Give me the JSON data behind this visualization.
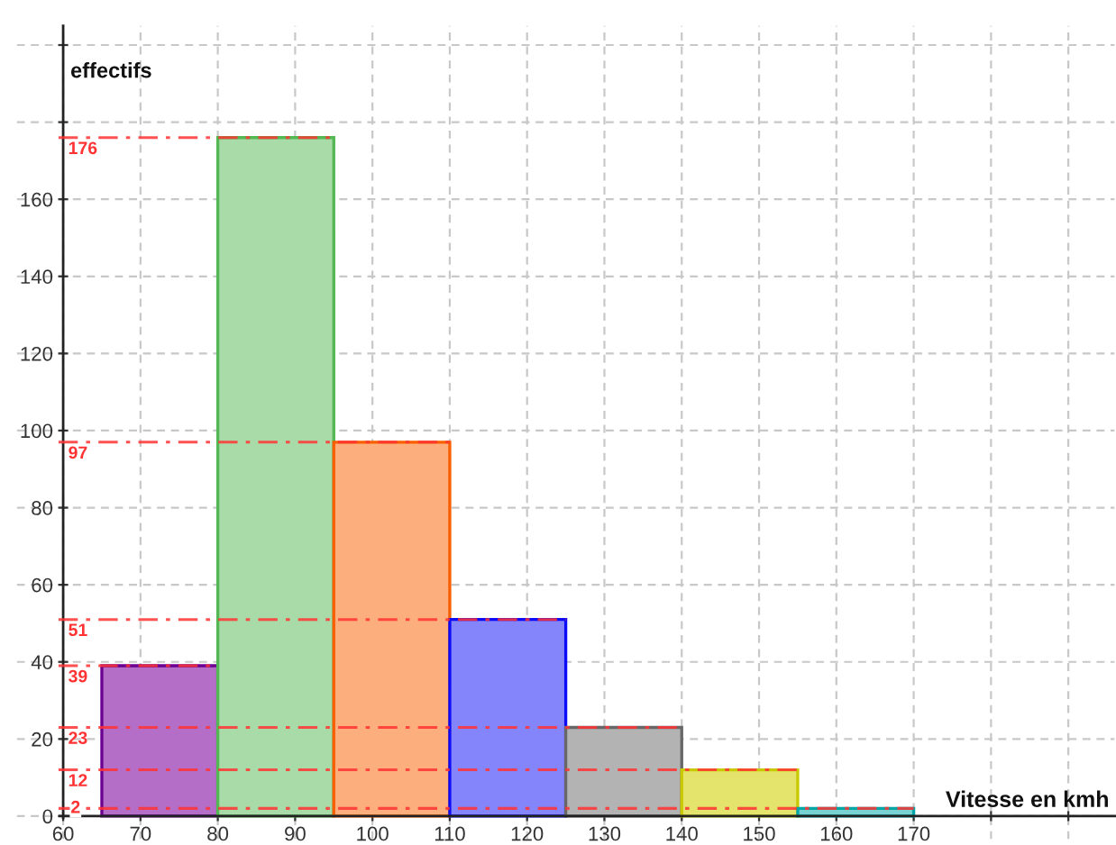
{
  "chart_data": {
    "type": "histogram",
    "xlabel": "Vitesse en kmh",
    "ylabel": "effectifs",
    "bins": [
      65,
      80,
      95,
      110,
      125,
      140,
      155,
      170
    ],
    "values": [
      39,
      176,
      97,
      51,
      23,
      12,
      2
    ],
    "colors": [
      "#b56ec8",
      "#a9dba9",
      "#fcaf7c",
      "#8585fb",
      "#b3b3b3",
      "#e4e46c",
      "#79d2d2"
    ],
    "xlim": [
      54,
      196
    ],
    "ylim": [
      -6,
      205
    ],
    "xticks": [
      60,
      70,
      80,
      90,
      100,
      110,
      120,
      130,
      140,
      150,
      160,
      170,
      {
        "value": 180,
        "label": null
      },
      {
        "value": 190,
        "label": null
      }
    ],
    "yticks": [
      0,
      20,
      40,
      60,
      80,
      100,
      120,
      140,
      160,
      {
        "value": 180,
        "label": null
      },
      {
        "value": 200,
        "label": null
      }
    ],
    "grid": true,
    "ref_lines": [
      {
        "axis": "y",
        "value": 176,
        "label": "176",
        "color": "#ff3333",
        "line_style": "dashdot"
      },
      {
        "axis": "y",
        "value": 97,
        "label": "97",
        "color": "#ff3333",
        "line_style": "dashdot"
      },
      {
        "axis": "y",
        "value": 51,
        "label": "51",
        "color": "#ff3333",
        "line_style": "dashdot"
      },
      {
        "axis": "y",
        "value": 39,
        "label": "39",
        "color": "#ff3333",
        "line_style": "dashdot"
      },
      {
        "axis": "y",
        "value": 23,
        "label": "23",
        "color": "#ff3333",
        "line_style": "dashdot"
      },
      {
        "axis": "y",
        "value": 12,
        "label": "12",
        "color": "#ff3333",
        "line_style": "dashdot"
      },
      {
        "axis": "y",
        "value": 2,
        "label": "2",
        "color": "#ff3333",
        "line_style": "dashdot"
      }
    ]
  }
}
